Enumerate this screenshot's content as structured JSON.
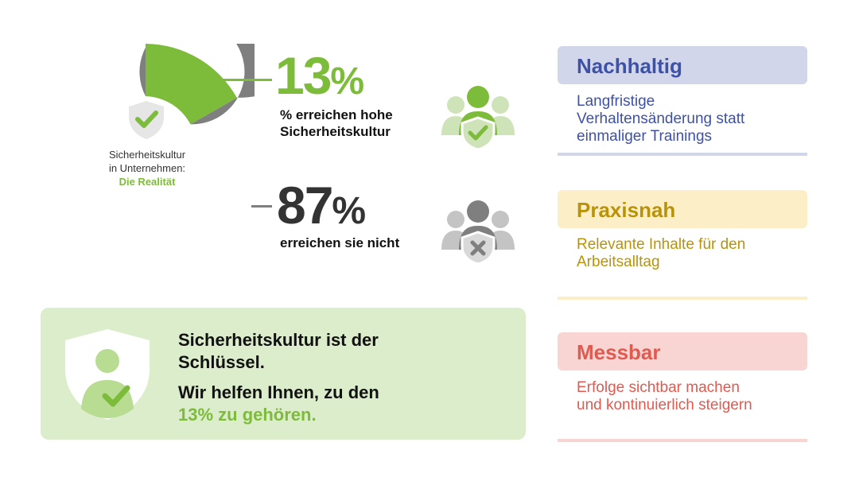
{
  "donut": {
    "center_line1": "Sicherheitskultur",
    "center_line2": "in Unternehmen:",
    "center_highlight": "Die Realität",
    "achieved_pct": 13,
    "not_achieved_pct": 87,
    "colors": {
      "achieved": "#7dbb3a",
      "not_achieved": "#7f7f7f",
      "accent_light": "#cfe3b8"
    }
  },
  "stat_high": {
    "value": "13",
    "unit": "%",
    "label_line1": "% erreichen hohe",
    "label_line2": "Sicherheitskultur",
    "icon": "team-check-icon"
  },
  "stat_low": {
    "value": "87",
    "unit": "%",
    "label": "erreichen sie nicht",
    "icon": "team-cross-icon"
  },
  "cards": [
    {
      "title": "Nachhaltig",
      "lines": [
        "Langfristige",
        "Verhaltensänderung statt",
        "einmaliger Trainings"
      ],
      "head_bg": "#d2d6ea",
      "title_color": "#3d51a8",
      "body_color": "#3d51a8",
      "line_color": "#d2d6ea"
    },
    {
      "title": "Praxisnah",
      "lines": [
        "Relevante Inhalte für den",
        "Arbeitsalltag"
      ],
      "head_bg": "#fcefc8",
      "title_color": "#b8930a",
      "body_color": "#b8930a",
      "line_color": "#fcefc8"
    },
    {
      "title": "Messbar",
      "lines": [
        "Erfolge sichtbar machen",
        "und kontinuierlich steigern"
      ],
      "head_bg": "#f8d5d3",
      "title_color": "#e05a50",
      "body_color": "#e05a50",
      "line_color": "#f8d5d3"
    }
  ],
  "banner": {
    "line1": "Sicherheitskultur ist der",
    "line2": "Schlüssel.",
    "line3": "Wir helfen Ihnen, zu den",
    "line4": "13% zu gehören.",
    "icon": "shield-user-check-icon"
  }
}
